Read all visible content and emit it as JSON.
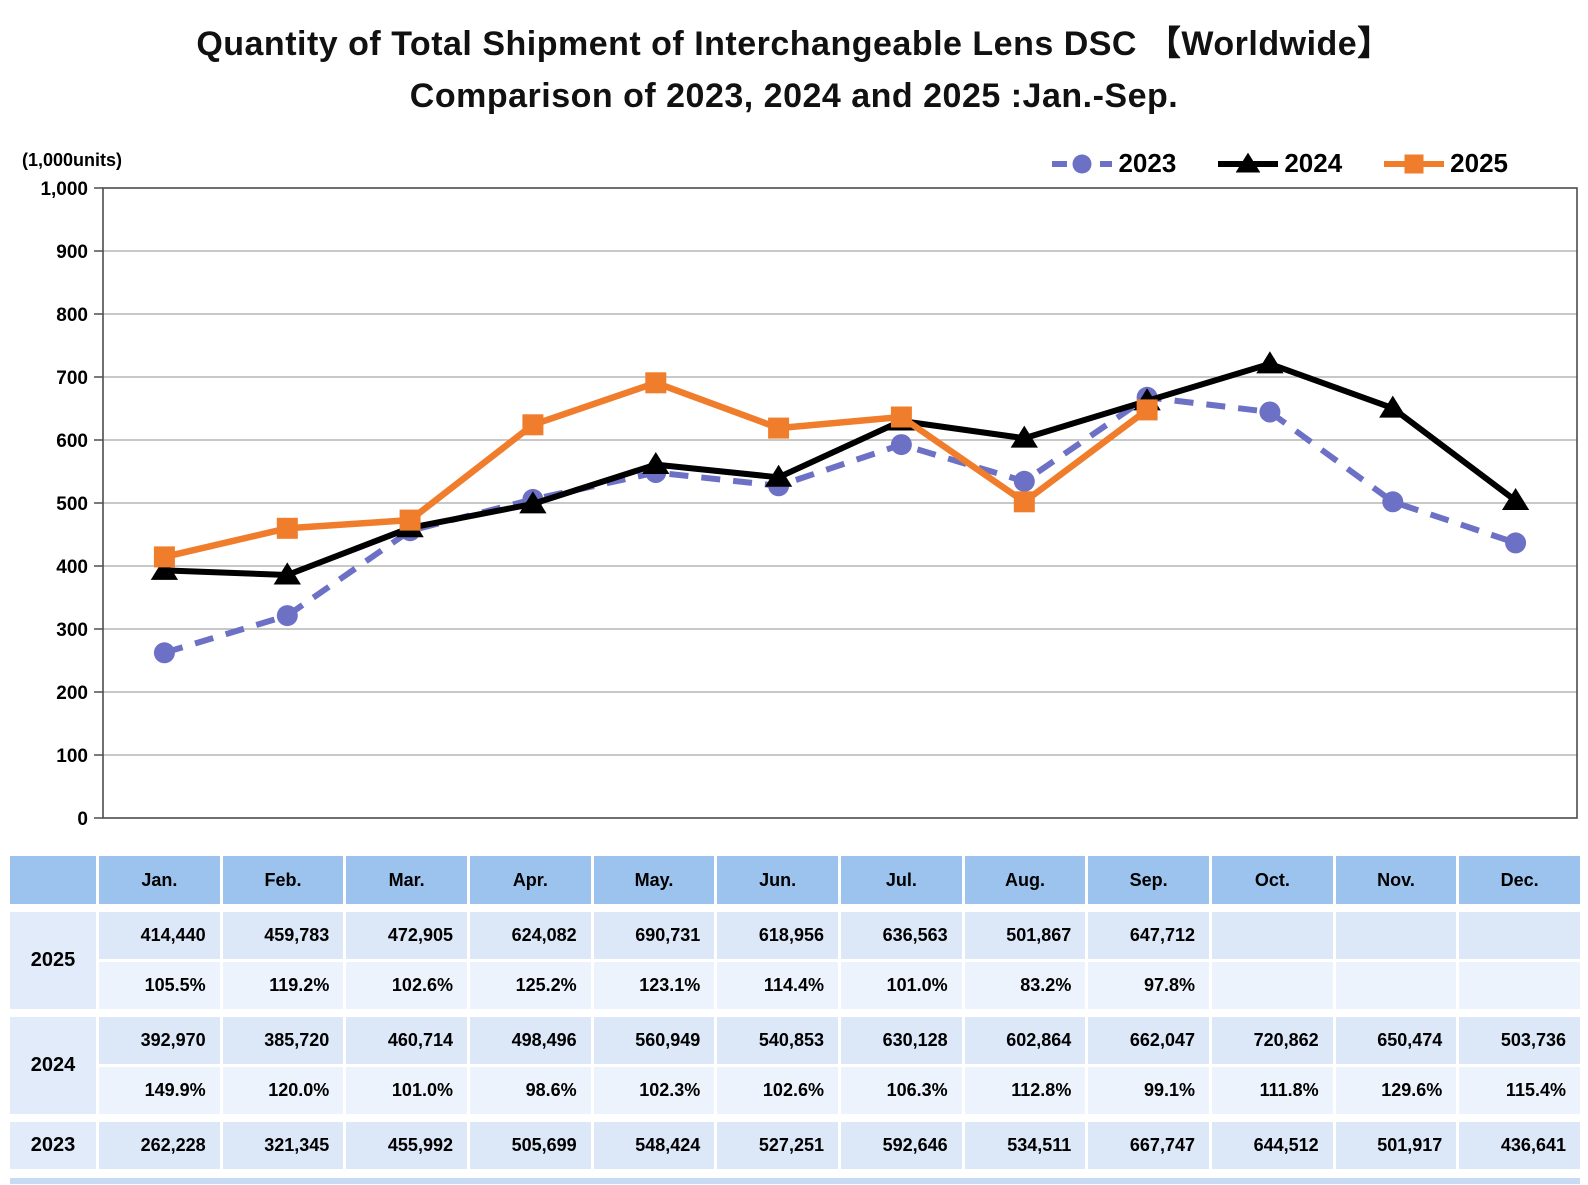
{
  "title": {
    "line1": "Quantity of Total Shipment of Interchangeable Lens DSC 【Worldwide】",
    "line2": "Comparison of 2023, 2024 and 2025 :Jan.-Sep."
  },
  "chart_data": {
    "type": "line",
    "title": "Quantity of Total Shipment of Interchangeable Lens DSC 【Worldwide】 Comparison of 2023, 2024 and 2025 :Jan.-Sep.",
    "y_unit_label": "(1,000units)",
    "xlabel": "",
    "ylabel": "(1,000units)",
    "x_categories": [
      "Jan.",
      "Feb.",
      "Mar.",
      "Apr.",
      "May.",
      "Jun.",
      "Jul.",
      "Aug.",
      "Sep.",
      "Oct.",
      "Nov.",
      "Dec."
    ],
    "ylim": [
      0,
      1000
    ],
    "y_tick_values": [
      0,
      100,
      200,
      300,
      400,
      500,
      600,
      700,
      800,
      900,
      1000
    ],
    "y_tick_labels": [
      "0",
      "100",
      "200",
      "300",
      "400",
      "500",
      "600",
      "700",
      "800",
      "900",
      "1,000"
    ],
    "grid": "horizontal",
    "legend_position": "top-right",
    "series": [
      {
        "name": "2023",
        "color": "#6C71C6",
        "line_style": "dashed",
        "marker": "circle",
        "values": [
          262.228,
          321.345,
          455.992,
          505.699,
          548.424,
          527.251,
          592.646,
          534.511,
          667.747,
          644.512,
          501.917,
          436.641
        ]
      },
      {
        "name": "2024",
        "color": "#000000",
        "line_style": "solid",
        "marker": "triangle",
        "values": [
          392.97,
          385.72,
          460.714,
          498.496,
          560.949,
          540.853,
          630.128,
          602.864,
          662.047,
          720.862,
          650.474,
          503.736
        ]
      },
      {
        "name": "2025",
        "color": "#F07D2B",
        "line_style": "solid",
        "marker": "square",
        "values": [
          414.44,
          459.783,
          472.905,
          624.082,
          690.731,
          618.956,
          636.563,
          501.867,
          647.712
        ]
      }
    ]
  },
  "table": {
    "columns": [
      "Jan.",
      "Feb.",
      "Mar.",
      "Apr.",
      "May.",
      "Jun.",
      "Jul.",
      "Aug.",
      "Sep.",
      "Oct.",
      "Nov.",
      "Dec."
    ],
    "groups": [
      {
        "year": "2025",
        "values": [
          "414,440",
          "459,783",
          "472,905",
          "624,082",
          "690,731",
          "618,956",
          "636,563",
          "501,867",
          "647,712",
          "",
          "",
          ""
        ],
        "percents": [
          "105.5%",
          "119.2%",
          "102.6%",
          "125.2%",
          "123.1%",
          "114.4%",
          "101.0%",
          "83.2%",
          "97.8%",
          "",
          "",
          ""
        ]
      },
      {
        "year": "2024",
        "values": [
          "392,970",
          "385,720",
          "460,714",
          "498,496",
          "560,949",
          "540,853",
          "630,128",
          "602,864",
          "662,047",
          "720,862",
          "650,474",
          "503,736"
        ],
        "percents": [
          "149.9%",
          "120.0%",
          "101.0%",
          "98.6%",
          "102.3%",
          "102.6%",
          "106.3%",
          "112.8%",
          "99.1%",
          "111.8%",
          "129.6%",
          "115.4%"
        ]
      },
      {
        "year": "2023",
        "values": [
          "262,228",
          "321,345",
          "455,992",
          "505,699",
          "548,424",
          "527,251",
          "592,646",
          "534,511",
          "667,747",
          "644,512",
          "501,917",
          "436,641"
        ]
      }
    ]
  },
  "colors": {
    "series_2023": "#6C71C6",
    "series_2024": "#000000",
    "series_2025": "#F07D2B",
    "table_header_bg": "#9CC3EE",
    "table_value_bg": "#DCE7F7",
    "table_percent_bg": "#EDF3FC",
    "table_year_bg": "#E2EBF9",
    "gridline": "#A6A6A6",
    "plot_border": "#4D4D4D"
  }
}
